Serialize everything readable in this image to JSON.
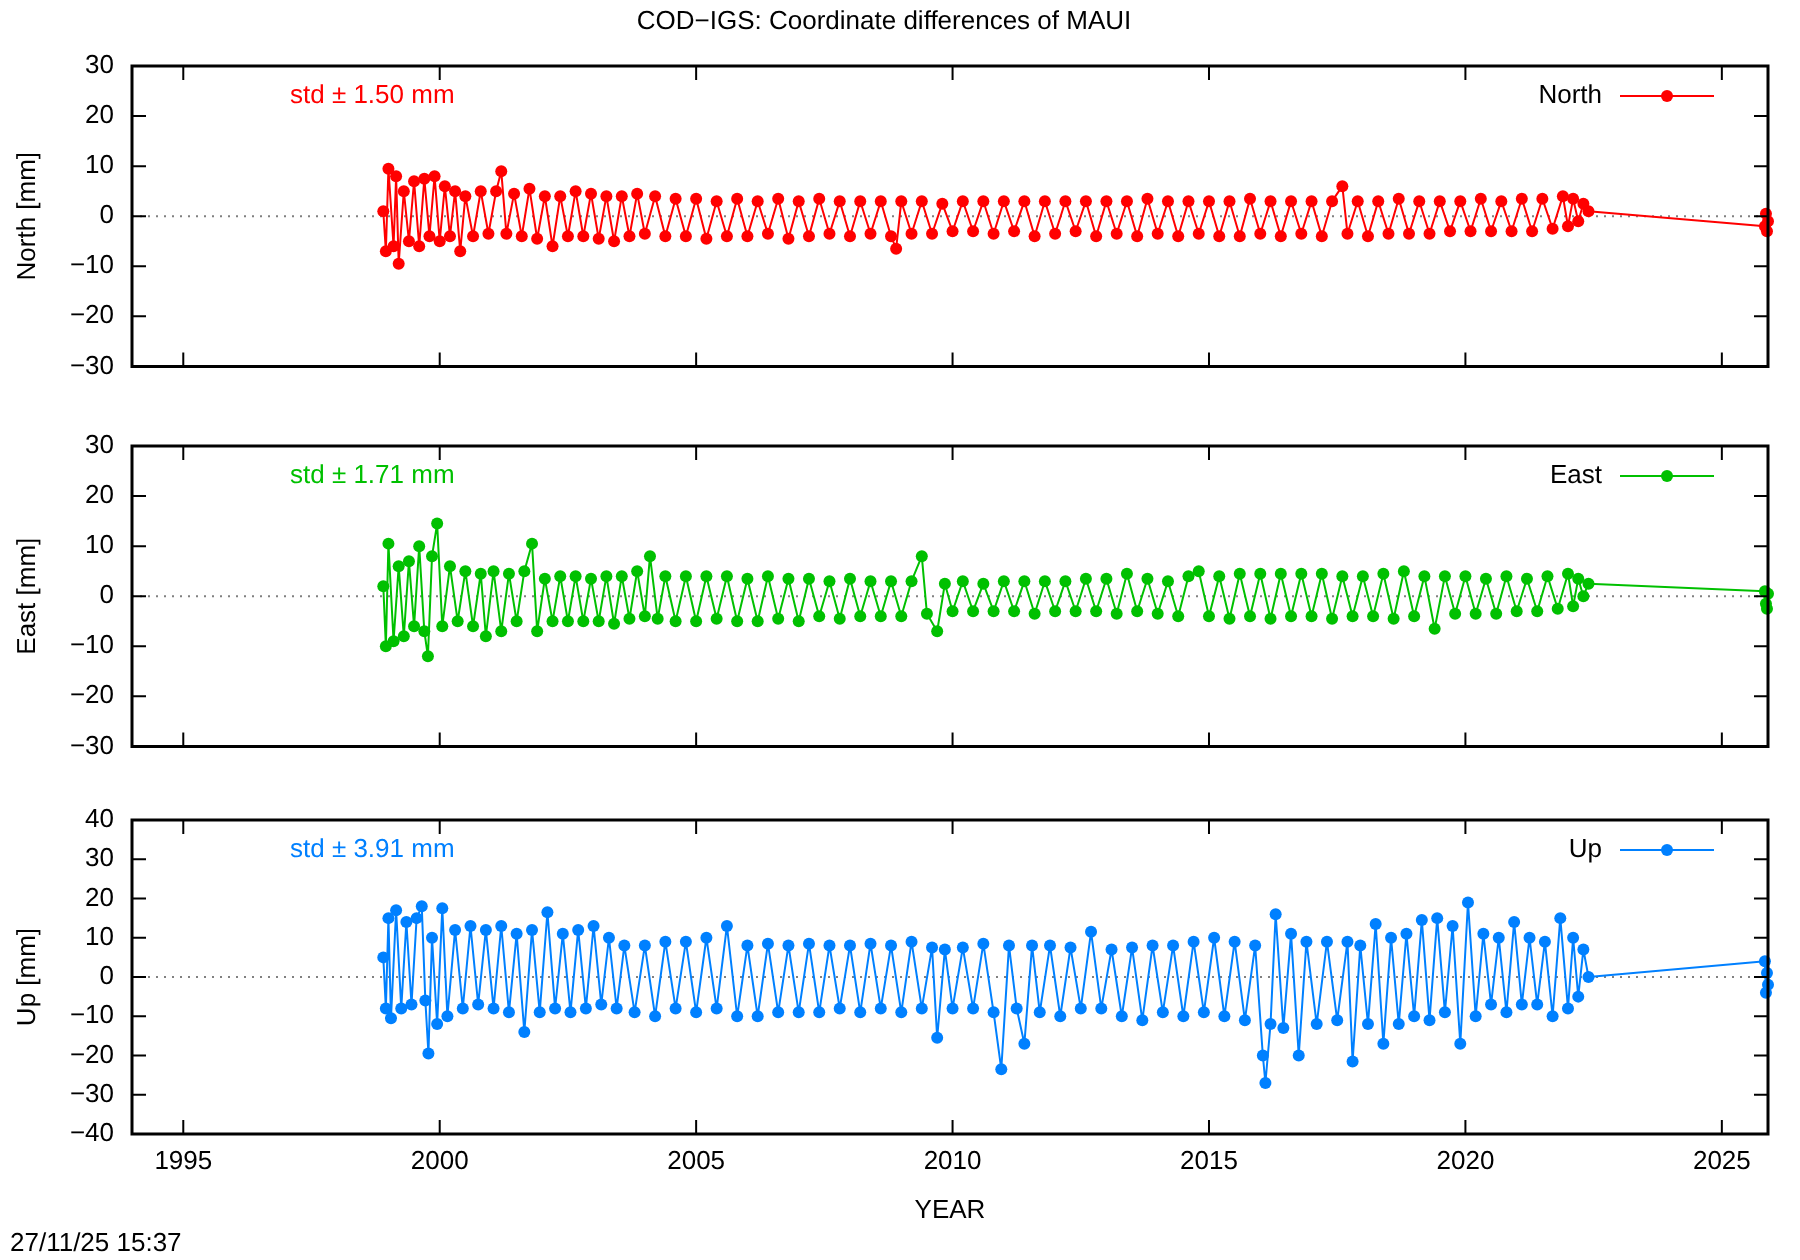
{
  "chart_data": [
    {
      "type": "line",
      "title": "COD−IGS: Coordinate differences of MAUI",
      "ylabel": "North [mm]",
      "annotations": [
        "std ± 1.50 mm"
      ],
      "legend": "top right",
      "marker": "circle",
      "line_style": "solid",
      "tick_labels": "y",
      "xlim": [
        1994,
        2025.9
      ],
      "xticks": [
        1995,
        2000,
        2005,
        2010,
        2015,
        2020,
        2025
      ],
      "ylim": [
        -30,
        30
      ],
      "yticks": [
        {
          "value": -30,
          "label": "−30"
        },
        {
          "value": -20,
          "label": "−20"
        },
        {
          "value": -10,
          "label": "−10"
        },
        0,
        10,
        20,
        30
      ],
      "ref_lines": [
        {
          "axis": "y",
          "value": 0,
          "color": "#808080",
          "line_style": "dotted"
        }
      ],
      "series": [
        {
          "name": "North",
          "color": "#ff0000",
          "x": [
            1998.9,
            1998.95,
            1999,
            1999.1,
            1999.15,
            1999.2,
            1999.3,
            1999.4,
            1999.5,
            1999.6,
            1999.7,
            1999.8,
            1999.9,
            2000,
            2000.1,
            2000.2,
            2000.3,
            2000.4,
            2000.5,
            2000.65,
            2000.8,
            2000.95,
            2001.1,
            2001.2,
            2001.3,
            2001.45,
            2001.6,
            2001.75,
            2001.9,
            2002.05,
            2002.2,
            2002.35,
            2002.5,
            2002.65,
            2002.8,
            2002.95,
            2003.1,
            2003.25,
            2003.4,
            2003.55,
            2003.7,
            2003.85,
            2004,
            2004.2,
            2004.4,
            2004.6,
            2004.8,
            2005,
            2005.2,
            2005.4,
            2005.6,
            2005.8,
            2006,
            2006.2,
            2006.4,
            2006.6,
            2006.8,
            2007,
            2007.2,
            2007.4,
            2007.6,
            2007.8,
            2008,
            2008.2,
            2008.4,
            2008.6,
            2008.8,
            2008.9,
            2009,
            2009.2,
            2009.4,
            2009.6,
            2009.8,
            2010,
            2010.2,
            2010.4,
            2010.6,
            2010.8,
            2011,
            2011.2,
            2011.4,
            2011.6,
            2011.8,
            2012,
            2012.2,
            2012.4,
            2012.6,
            2012.8,
            2013,
            2013.2,
            2013.4,
            2013.6,
            2013.8,
            2014,
            2014.2,
            2014.4,
            2014.6,
            2014.8,
            2015,
            2015.2,
            2015.4,
            2015.6,
            2015.8,
            2016,
            2016.2,
            2016.4,
            2016.6,
            2016.8,
            2017,
            2017.2,
            2017.4,
            2017.6,
            2017.7,
            2017.9,
            2018.1,
            2018.3,
            2018.5,
            2018.7,
            2018.9,
            2019.1,
            2019.3,
            2019.5,
            2019.7,
            2019.9,
            2020.1,
            2020.3,
            2020.5,
            2020.7,
            2020.9,
            2021.1,
            2021.3,
            2021.5,
            2021.7,
            2021.9,
            2022,
            2022.1,
            2022.2,
            2022.3,
            2022.4,
            2025.84,
            2025.86,
            2025.88,
            2025.9
          ],
          "values": [
            1,
            -7,
            9.5,
            -6,
            8,
            -9.5,
            5,
            -5,
            7,
            -6,
            7.5,
            -4,
            8,
            -5,
            6,
            -4,
            5,
            -7,
            4,
            -4,
            5,
            -3.5,
            5,
            9,
            -3.5,
            4.5,
            -4,
            5.5,
            -4.5,
            4,
            -6,
            4,
            -4,
            5,
            -4,
            4.5,
            -4.5,
            4,
            -5,
            4,
            -4,
            4.5,
            -3.5,
            4,
            -4,
            3.5,
            -4,
            3.5,
            -4.5,
            3,
            -4,
            3.5,
            -4,
            3,
            -3.5,
            3.5,
            -4.5,
            3,
            -4,
            3.5,
            -3.5,
            3,
            -4,
            3,
            -3.5,
            3,
            -4,
            -6.5,
            3,
            -3.5,
            3,
            -3.5,
            2.5,
            -3,
            3,
            -3,
            3,
            -3.5,
            3,
            -3,
            3,
            -4,
            3,
            -3.5,
            3,
            -3,
            3,
            -4,
            3,
            -3.5,
            3,
            -4,
            3.5,
            -3.5,
            3,
            -4,
            3,
            -3.5,
            3,
            -4,
            3,
            -4,
            3.5,
            -3.5,
            3,
            -4,
            3,
            -3.5,
            3,
            -4,
            3,
            6,
            -3.5,
            3,
            -4,
            3,
            -3.5,
            3.5,
            -3.5,
            3,
            -3.5,
            3,
            -3,
            3,
            -3,
            3.5,
            -3,
            3,
            -3,
            3.5,
            -3,
            3.5,
            -2.5,
            4,
            -2,
            3.5,
            -1,
            2.5,
            1,
            -2,
            0.5,
            -3,
            -1
          ]
        }
      ]
    },
    {
      "type": "line",
      "ylabel": "East [mm]",
      "annotations": [
        "std ± 1.71 mm"
      ],
      "legend": "top right",
      "marker": "circle",
      "line_style": "solid",
      "tick_labels": "y",
      "xlim": [
        1994,
        2025.9
      ],
      "xticks": [
        1995,
        2000,
        2005,
        2010,
        2015,
        2020,
        2025
      ],
      "ylim": [
        -30,
        30
      ],
      "yticks": [
        {
          "value": -30,
          "label": "−30"
        },
        {
          "value": -20,
          "label": "−20"
        },
        {
          "value": -10,
          "label": "−10"
        },
        0,
        10,
        20,
        30
      ],
      "ref_lines": [
        {
          "axis": "y",
          "value": 0,
          "color": "#808080",
          "line_style": "dotted"
        }
      ],
      "series": [
        {
          "name": "East",
          "color": "#00c000",
          "x": [
            1998.9,
            1998.95,
            1999,
            1999.1,
            1999.2,
            1999.3,
            1999.4,
            1999.5,
            1999.6,
            1999.7,
            1999.77,
            1999.85,
            1999.95,
            2000.05,
            2000.2,
            2000.35,
            2000.5,
            2000.65,
            2000.8,
            2000.9,
            2001.05,
            2001.2,
            2001.35,
            2001.5,
            2001.65,
            2001.8,
            2001.9,
            2002.05,
            2002.2,
            2002.35,
            2002.5,
            2002.65,
            2002.8,
            2002.95,
            2003.1,
            2003.25,
            2003.4,
            2003.55,
            2003.7,
            2003.85,
            2004,
            2004.1,
            2004.25,
            2004.4,
            2004.6,
            2004.8,
            2005,
            2005.2,
            2005.4,
            2005.6,
            2005.8,
            2006,
            2006.2,
            2006.4,
            2006.6,
            2006.8,
            2007,
            2007.2,
            2007.4,
            2007.6,
            2007.8,
            2008,
            2008.2,
            2008.4,
            2008.6,
            2008.8,
            2009,
            2009.2,
            2009.4,
            2009.5,
            2009.7,
            2009.85,
            2010,
            2010.2,
            2010.4,
            2010.6,
            2010.8,
            2011,
            2011.2,
            2011.4,
            2011.6,
            2011.8,
            2012,
            2012.2,
            2012.4,
            2012.6,
            2012.8,
            2013,
            2013.2,
            2013.4,
            2013.6,
            2013.8,
            2014,
            2014.2,
            2014.4,
            2014.6,
            2014.8,
            2015,
            2015.2,
            2015.4,
            2015.6,
            2015.8,
            2016,
            2016.2,
            2016.4,
            2016.6,
            2016.8,
            2017,
            2017.2,
            2017.4,
            2017.6,
            2017.8,
            2018,
            2018.2,
            2018.4,
            2018.6,
            2018.8,
            2019,
            2019.2,
            2019.4,
            2019.6,
            2019.8,
            2020,
            2020.2,
            2020.4,
            2020.6,
            2020.8,
            2021,
            2021.2,
            2021.4,
            2021.6,
            2021.8,
            2022,
            2022.1,
            2022.2,
            2022.3,
            2022.4,
            2025.84,
            2025.86,
            2025.88,
            2025.9
          ],
          "values": [
            2,
            -10,
            10.5,
            -9,
            6,
            -8,
            7,
            -6,
            10,
            -7,
            -12,
            8,
            14.5,
            -6,
            6,
            -5,
            5,
            -6,
            4.5,
            -8,
            5,
            -7,
            4.5,
            -5,
            5,
            10.5,
            -7,
            3.5,
            -5,
            4,
            -5,
            4,
            -5,
            3.5,
            -5,
            4,
            -5.5,
            4,
            -4.5,
            5,
            -4,
            8,
            -4.5,
            4,
            -5,
            4,
            -5,
            4,
            -4.5,
            4,
            -5,
            3.5,
            -5,
            4,
            -4.5,
            3.5,
            -5,
            3.5,
            -4,
            3,
            -4.5,
            3.5,
            -4,
            3,
            -4,
            3,
            -4,
            3,
            8,
            -3.5,
            -7,
            2.5,
            -3,
            3,
            -3,
            2.5,
            -3,
            3,
            -3,
            3,
            -3.5,
            3,
            -3,
            3,
            -3,
            3.5,
            -3,
            3.5,
            -3.5,
            4.5,
            -3,
            3.5,
            -3.5,
            3,
            -4,
            4,
            5,
            -4,
            4,
            -4.5,
            4.5,
            -4,
            4.5,
            -4.5,
            4.5,
            -4,
            4.5,
            -4,
            4.5,
            -4.5,
            4,
            -4,
            4,
            -4,
            4.5,
            -4.5,
            5,
            -4,
            4,
            -6.5,
            4,
            -3.5,
            4,
            -3.5,
            3.5,
            -3.5,
            4,
            -3,
            3.5,
            -3,
            4,
            -2.5,
            4.5,
            -2,
            3.5,
            0,
            2.5,
            1,
            -1.5,
            -2.5,
            0.5
          ]
        }
      ]
    },
    {
      "type": "line",
      "xlabel": "YEAR",
      "ylabel": "Up [mm]",
      "annotations": [
        "std ± 3.91 mm",
        "27/11/25 15:37"
      ],
      "legend": "top right",
      "marker": "circle",
      "line_style": "solid",
      "xlim": [
        1994,
        2025.9
      ],
      "xticks": [
        1995,
        2000,
        2005,
        2010,
        2015,
        2020,
        2025
      ],
      "ylim": [
        -40,
        40
      ],
      "yticks": [
        {
          "value": -40,
          "label": "−40"
        },
        {
          "value": -30,
          "label": "−30"
        },
        {
          "value": -20,
          "label": "−20"
        },
        {
          "value": -10,
          "label": "−10"
        },
        0,
        10,
        20,
        30,
        40
      ],
      "ref_lines": [
        {
          "axis": "y",
          "value": 0,
          "color": "#808080",
          "line_style": "dotted"
        }
      ],
      "series": [
        {
          "name": "Up",
          "color": "#0080ff",
          "x": [
            1998.9,
            1998.95,
            1999,
            1999.05,
            1999.15,
            1999.25,
            1999.35,
            1999.45,
            1999.55,
            1999.65,
            1999.72,
            1999.78,
            1999.85,
            1999.95,
            2000.05,
            2000.15,
            2000.3,
            2000.45,
            2000.6,
            2000.75,
            2000.9,
            2001.05,
            2001.2,
            2001.35,
            2001.5,
            2001.65,
            2001.8,
            2001.95,
            2002.1,
            2002.25,
            2002.4,
            2002.55,
            2002.7,
            2002.85,
            2003,
            2003.15,
            2003.3,
            2003.45,
            2003.6,
            2003.8,
            2004,
            2004.2,
            2004.4,
            2004.6,
            2004.8,
            2005,
            2005.2,
            2005.4,
            2005.6,
            2005.8,
            2006,
            2006.2,
            2006.4,
            2006.6,
            2006.8,
            2007,
            2007.2,
            2007.4,
            2007.6,
            2007.8,
            2008,
            2008.2,
            2008.4,
            2008.6,
            2008.8,
            2009,
            2009.2,
            2009.4,
            2009.6,
            2009.7,
            2009.85,
            2010,
            2010.2,
            2010.4,
            2010.6,
            2010.8,
            2010.95,
            2011.1,
            2011.25,
            2011.4,
            2011.55,
            2011.7,
            2011.9,
            2012.1,
            2012.3,
            2012.5,
            2012.7,
            2012.9,
            2013.1,
            2013.3,
            2013.5,
            2013.7,
            2013.9,
            2014.1,
            2014.3,
            2014.5,
            2014.7,
            2014.9,
            2015.1,
            2015.3,
            2015.5,
            2015.7,
            2015.9,
            2016.05,
            2016.1,
            2016.2,
            2016.3,
            2016.45,
            2016.6,
            2016.75,
            2016.9,
            2017.1,
            2017.3,
            2017.5,
            2017.7,
            2017.8,
            2017.95,
            2018.1,
            2018.25,
            2018.4,
            2018.55,
            2018.7,
            2018.85,
            2019,
            2019.15,
            2019.3,
            2019.45,
            2019.6,
            2019.75,
            2019.9,
            2020.05,
            2020.2,
            2020.35,
            2020.5,
            2020.65,
            2020.8,
            2020.95,
            2021.1,
            2021.25,
            2021.4,
            2021.55,
            2021.7,
            2021.85,
            2022,
            2022.1,
            2022.2,
            2022.3,
            2022.4,
            2025.84,
            2025.86,
            2025.88,
            2025.9
          ],
          "values": [
            5,
            -8,
            15,
            -10.5,
            17,
            -8,
            14,
            -7,
            15,
            18,
            -6,
            -19.5,
            10,
            -12,
            17.5,
            -10,
            12,
            -8,
            13,
            -7,
            12,
            -8,
            13,
            -9,
            11,
            -14,
            12,
            -9,
            16.5,
            -8,
            11,
            -9,
            12,
            -8,
            13,
            -7,
            10,
            -8,
            8,
            -9,
            8,
            -10,
            9,
            -8,
            9,
            -9,
            10,
            -8,
            13,
            -10,
            8,
            -10,
            8.5,
            -9,
            8,
            -9,
            8.5,
            -9,
            8,
            -8,
            8,
            -9,
            8.5,
            -8,
            8,
            -9,
            9,
            -8,
            7.5,
            -15.5,
            7,
            -8,
            7.5,
            -8,
            8.5,
            -9,
            -23.5,
            8,
            -8,
            -17,
            8,
            -9,
            8,
            -10,
            7.5,
            -8,
            11.5,
            -8,
            7,
            -10,
            7.5,
            -11,
            8,
            -9,
            8,
            -10,
            9,
            -9,
            10,
            -10,
            9,
            -11,
            8,
            -20,
            -27,
            -12,
            16,
            -13,
            11,
            -20,
            9,
            -12,
            9,
            -11,
            9,
            -21.5,
            8,
            -12,
            13.5,
            -17,
            10,
            -12,
            11,
            -10,
            14.5,
            -11,
            15,
            -9,
            13,
            -17,
            19,
            -10,
            11,
            -7,
            10,
            -9,
            14,
            -7,
            10,
            -7,
            9,
            -10,
            15,
            -8,
            10,
            -5,
            7,
            0,
            4,
            -4,
            1,
            -2
          ]
        }
      ]
    }
  ]
}
